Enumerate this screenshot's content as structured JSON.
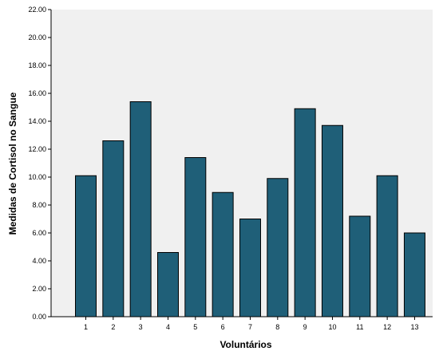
{
  "chart_data": {
    "type": "bar",
    "title": "",
    "xlabel": "Voluntários",
    "ylabel": "Medidas de Cortisol no Sangue",
    "categories": [
      "1",
      "2",
      "3",
      "4",
      "5",
      "6",
      "7",
      "8",
      "9",
      "10",
      "11",
      "12",
      "13"
    ],
    "values": [
      10.1,
      12.6,
      15.4,
      4.6,
      11.4,
      8.9,
      7.0,
      9.9,
      14.9,
      13.7,
      7.2,
      10.1,
      6.0
    ],
    "ylim": [
      0,
      22
    ],
    "yticks": [
      "0.00",
      "2.00",
      "4.00",
      "6.00",
      "8.00",
      "10.00",
      "12.00",
      "14.00",
      "16.00",
      "18.00",
      "20.00",
      "22.00"
    ],
    "grid": false,
    "legend": "none",
    "colors": {
      "bar_fill": "#1f5f78",
      "bar_stroke": "#000000",
      "plot_background": "#f0f0f0"
    }
  }
}
